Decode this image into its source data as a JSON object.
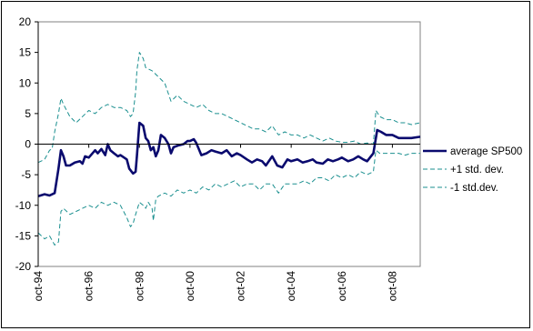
{
  "chart_data": {
    "type": "line",
    "title": "",
    "xlabel": "",
    "ylabel": "",
    "ylim": [
      -20,
      20
    ],
    "yticks": [
      20,
      15,
      10,
      5,
      0,
      -5,
      -10,
      -15,
      -20
    ],
    "xlim": [
      1994.75,
      2009.85
    ],
    "xtick_labels": [
      "oct-94",
      "oct-96",
      "oct-98",
      "oct-00",
      "oct-02",
      "oct-04",
      "oct-06",
      "oct-08"
    ],
    "xtick_values": [
      1994.75,
      1996.75,
      1998.75,
      2000.75,
      2002.75,
      2004.75,
      2006.75,
      2008.75
    ],
    "grid": false,
    "legend_position": "right",
    "series": [
      {
        "name": "average SP500",
        "color": "#0a0a6e",
        "style": "solid",
        "x": [
          1994.75,
          1995.0,
          1995.2,
          1995.4,
          1995.55,
          1995.65,
          1995.75,
          1995.85,
          1996.0,
          1996.2,
          1996.4,
          1996.5,
          1996.6,
          1996.75,
          1997.0,
          1997.1,
          1997.25,
          1997.4,
          1997.5,
          1997.6,
          1997.75,
          1997.9,
          1998.0,
          1998.25,
          1998.35,
          1998.5,
          1998.6,
          1998.65,
          1998.75,
          1998.9,
          1999.0,
          1999.1,
          1999.2,
          1999.3,
          1999.4,
          1999.5,
          1999.6,
          1999.75,
          1999.9,
          2000.0,
          2000.1,
          2000.3,
          2000.5,
          2000.65,
          2000.75,
          2000.9,
          2001.0,
          2001.2,
          2001.4,
          2001.6,
          2001.75,
          2002.0,
          2002.2,
          2002.4,
          2002.6,
          2002.75,
          2003.0,
          2003.2,
          2003.4,
          2003.6,
          2003.75,
          2004.0,
          2004.2,
          2004.4,
          2004.6,
          2004.75,
          2005.0,
          2005.2,
          2005.4,
          2005.6,
          2005.75,
          2006.0,
          2006.2,
          2006.4,
          2006.6,
          2006.75,
          2007.0,
          2007.2,
          2007.4,
          2007.6,
          2007.75,
          2007.9,
          2008.0,
          2008.15,
          2008.3,
          2008.5,
          2008.75,
          2009.0,
          2009.25,
          2009.5,
          2009.85
        ],
        "y": [
          -8.5,
          -8.2,
          -8.4,
          -8.0,
          -4.0,
          -1.0,
          -2.0,
          -3.5,
          -3.5,
          -3.0,
          -2.8,
          -3.2,
          -2.0,
          -2.2,
          -1.0,
          -1.5,
          -0.8,
          -1.8,
          0.0,
          -1.0,
          -1.5,
          -2.0,
          -1.8,
          -2.5,
          -4.0,
          -4.8,
          -4.5,
          -2.0,
          3.5,
          3.0,
          1.0,
          0.5,
          -1.0,
          -0.5,
          -2.0,
          -1.0,
          1.5,
          1.0,
          0.0,
          -1.5,
          -0.5,
          -0.2,
          0.0,
          0.5,
          0.5,
          0.8,
          0.2,
          -1.8,
          -1.5,
          -1.0,
          -1.2,
          -1.5,
          -1.0,
          -2.0,
          -1.5,
          -1.8,
          -2.5,
          -3.0,
          -2.5,
          -2.8,
          -3.5,
          -2.0,
          -3.5,
          -3.8,
          -2.5,
          -2.8,
          -2.5,
          -3.0,
          -2.8,
          -2.5,
          -3.0,
          -3.2,
          -2.5,
          -2.8,
          -2.5,
          -2.2,
          -2.8,
          -2.5,
          -2.0,
          -2.5,
          -2.8,
          -2.0,
          -1.5,
          2.3,
          2.0,
          1.5,
          1.5,
          1.0,
          1.0,
          1.0,
          1.2
        ]
      },
      {
        "name": "+1 std. dev.",
        "color": "#1a8f8f",
        "style": "dashed",
        "x": [
          1994.75,
          1995.0,
          1995.2,
          1995.3,
          1995.4,
          1995.55,
          1995.65,
          1995.75,
          1996.0,
          1996.25,
          1996.5,
          1996.75,
          1997.0,
          1997.25,
          1997.5,
          1997.75,
          1998.0,
          1998.25,
          1998.4,
          1998.5,
          1998.6,
          1998.65,
          1998.75,
          1998.9,
          1999.0,
          1999.25,
          1999.5,
          1999.75,
          2000.0,
          2000.25,
          2000.5,
          2000.75,
          2001.0,
          2001.25,
          2001.5,
          2001.75,
          2002.0,
          2002.25,
          2002.5,
          2002.75,
          2003.0,
          2003.25,
          2003.5,
          2003.75,
          2004.0,
          2004.25,
          2004.5,
          2004.75,
          2005.0,
          2005.25,
          2005.5,
          2005.75,
          2006.0,
          2006.25,
          2006.5,
          2006.75,
          2007.0,
          2007.25,
          2007.5,
          2007.75,
          2008.0,
          2008.1,
          2008.25,
          2008.5,
          2008.75,
          2009.0,
          2009.25,
          2009.5,
          2009.85
        ],
        "y": [
          -3.0,
          -2.5,
          -1.0,
          -0.8,
          2.0,
          5.0,
          7.5,
          6.5,
          4.5,
          3.5,
          4.5,
          5.5,
          5.0,
          6.0,
          6.5,
          6.0,
          6.0,
          5.5,
          4.5,
          5.0,
          8.5,
          12.0,
          15.0,
          14.0,
          12.5,
          12.0,
          11.0,
          10.0,
          7.0,
          8.0,
          7.0,
          6.5,
          6.0,
          6.5,
          5.5,
          5.0,
          5.0,
          4.5,
          4.0,
          3.5,
          3.0,
          2.5,
          2.5,
          2.0,
          3.0,
          1.5,
          2.0,
          1.5,
          1.5,
          1.0,
          1.5,
          1.0,
          0.5,
          1.0,
          0.5,
          0.3,
          0.3,
          0.5,
          0.0,
          0.2,
          0.0,
          5.5,
          4.5,
          4.0,
          4.0,
          3.5,
          3.5,
          3.2,
          3.5
        ]
      },
      {
        "name": "-1 std.dev.",
        "color": "#1a8f8f",
        "style": "dashed",
        "x": [
          1994.75,
          1995.0,
          1995.2,
          1995.4,
          1995.55,
          1995.65,
          1995.75,
          1996.0,
          1996.25,
          1996.5,
          1996.75,
          1997.0,
          1997.25,
          1997.5,
          1997.75,
          1998.0,
          1998.25,
          1998.4,
          1998.5,
          1998.6,
          1998.75,
          1998.9,
          1999.0,
          1999.1,
          1999.25,
          1999.3,
          1999.4,
          1999.5,
          1999.75,
          2000.0,
          2000.25,
          2000.5,
          2000.75,
          2001.0,
          2001.25,
          2001.5,
          2001.75,
          2002.0,
          2002.25,
          2002.5,
          2002.75,
          2003.0,
          2003.25,
          2003.5,
          2003.75,
          2004.0,
          2004.25,
          2004.5,
          2004.75,
          2005.0,
          2005.25,
          2005.5,
          2005.75,
          2006.0,
          2006.25,
          2006.5,
          2006.75,
          2007.0,
          2007.25,
          2007.5,
          2007.75,
          2008.0,
          2008.1,
          2008.25,
          2008.5,
          2008.75,
          2009.0,
          2009.25,
          2009.5,
          2009.85
        ],
        "y": [
          -14.5,
          -15.5,
          -15.0,
          -16.5,
          -16.0,
          -11.0,
          -10.5,
          -11.5,
          -11.0,
          -10.5,
          -10.0,
          -10.5,
          -9.5,
          -10.0,
          -9.5,
          -10.0,
          -12.0,
          -13.5,
          -13.0,
          -11.5,
          -9.5,
          -10.0,
          -10.5,
          -9.5,
          -10.5,
          -12.5,
          -9.0,
          -8.5,
          -8.0,
          -8.5,
          -7.5,
          -8.0,
          -7.5,
          -8.0,
          -7.0,
          -7.5,
          -6.5,
          -7.0,
          -6.5,
          -6.0,
          -7.0,
          -6.5,
          -6.5,
          -7.5,
          -6.5,
          -6.5,
          -8.0,
          -6.5,
          -6.5,
          -6.5,
          -6.0,
          -6.5,
          -5.5,
          -5.5,
          -6.0,
          -5.0,
          -5.5,
          -5.0,
          -5.5,
          -4.5,
          -5.0,
          -4.5,
          -1.0,
          -1.5,
          -1.5,
          -1.5,
          -1.5,
          -1.8,
          -1.5,
          -1.5
        ]
      }
    ]
  }
}
